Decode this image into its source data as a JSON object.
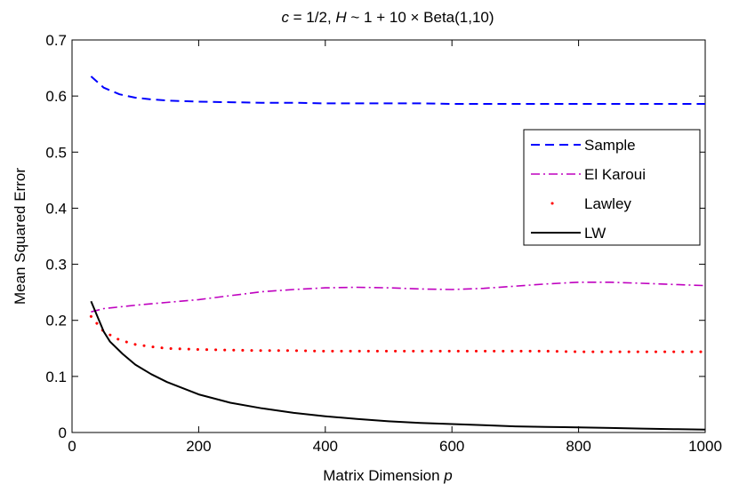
{
  "chart_data": {
    "type": "line",
    "title_parts": {
      "c_sym": "c",
      "c_val": " = 1/2,  ",
      "h_sym": "H",
      "h_val": " ~ 1 + 10 × Beta(1,10)"
    },
    "xlabel_parts": {
      "text": "Matrix Dimension  ",
      "sym": "p"
    },
    "ylabel": "Mean Squared Error",
    "xlim": [
      0,
      1000
    ],
    "ylim": [
      0,
      0.7
    ],
    "xticks": [
      0,
      200,
      400,
      600,
      800,
      1000
    ],
    "xtick_labels": [
      "0",
      "200",
      "400",
      "600",
      "800",
      "1000"
    ],
    "yticks": [
      0,
      0.1,
      0.2,
      0.3,
      0.4,
      0.5,
      0.6,
      0.7
    ],
    "ytick_labels": [
      "0",
      "0.1",
      "0.2",
      "0.3",
      "0.4",
      "0.5",
      "0.6",
      "0.7"
    ],
    "grid": false,
    "legend_position": "right",
    "series": [
      {
        "name": "Sample",
        "color": "#0000ff",
        "style": "dashed",
        "x": [
          30,
          50,
          75,
          100,
          125,
          150,
          200,
          250,
          300,
          350,
          400,
          450,
          500,
          550,
          600,
          650,
          700,
          750,
          800,
          850,
          900,
          950,
          1000
        ],
        "y": [
          0.635,
          0.615,
          0.603,
          0.597,
          0.594,
          0.592,
          0.59,
          0.589,
          0.588,
          0.588,
          0.587,
          0.587,
          0.587,
          0.587,
          0.586,
          0.586,
          0.586,
          0.586,
          0.586,
          0.586,
          0.586,
          0.586,
          0.586
        ]
      },
      {
        "name": "El Karoui",
        "color": "#bf00bf",
        "style": "dashdot",
        "x": [
          30,
          50,
          75,
          100,
          150,
          200,
          250,
          300,
          350,
          400,
          450,
          500,
          550,
          600,
          650,
          700,
          750,
          800,
          850,
          900,
          950,
          1000
        ],
        "y": [
          0.215,
          0.221,
          0.224,
          0.227,
          0.232,
          0.237,
          0.244,
          0.251,
          0.255,
          0.258,
          0.259,
          0.258,
          0.256,
          0.255,
          0.257,
          0.261,
          0.265,
          0.268,
          0.268,
          0.266,
          0.264,
          0.262
        ]
      },
      {
        "name": "Lawley",
        "color": "#ff0000",
        "style": "dotted",
        "x": [
          30,
          50,
          75,
          100,
          125,
          150,
          200,
          250,
          300,
          350,
          400,
          450,
          500,
          550,
          600,
          650,
          700,
          750,
          800,
          850,
          900,
          950,
          1000
        ],
        "y": [
          0.207,
          0.18,
          0.165,
          0.157,
          0.153,
          0.15,
          0.148,
          0.147,
          0.146,
          0.146,
          0.145,
          0.145,
          0.145,
          0.145,
          0.145,
          0.145,
          0.145,
          0.145,
          0.144,
          0.144,
          0.144,
          0.144,
          0.144
        ]
      },
      {
        "name": "LW",
        "color": "#000000",
        "style": "solid",
        "x": [
          30,
          50,
          60,
          80,
          100,
          125,
          150,
          200,
          250,
          300,
          350,
          400,
          450,
          500,
          550,
          600,
          650,
          700,
          750,
          800,
          850,
          900,
          950,
          1000
        ],
        "y": [
          0.234,
          0.18,
          0.162,
          0.14,
          0.121,
          0.104,
          0.09,
          0.068,
          0.053,
          0.043,
          0.035,
          0.029,
          0.024,
          0.02,
          0.017,
          0.015,
          0.013,
          0.011,
          0.01,
          0.009,
          0.008,
          0.007,
          0.006,
          0.005
        ]
      }
    ]
  }
}
